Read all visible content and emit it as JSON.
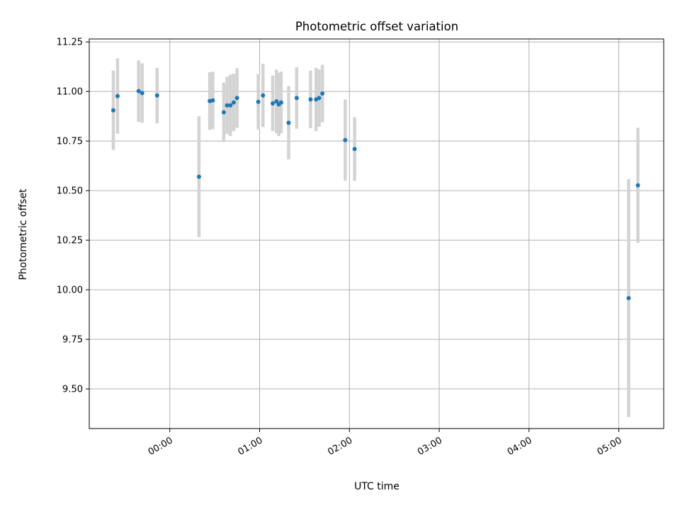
{
  "chart_data": {
    "type": "scatter",
    "title": "Photometric offset variation",
    "xlabel": "UTC time",
    "ylabel": "Photometric offset",
    "x_axis_type": "time",
    "xlim": [
      "-00:53:49",
      "05:30:00"
    ],
    "ylim": [
      9.3,
      11.265
    ],
    "x_ticks": [
      "00:00",
      "01:00",
      "02:00",
      "03:00",
      "04:00",
      "05:00"
    ],
    "y_ticks": [
      "9.50",
      "9.75",
      "10.00",
      "10.25",
      "10.50",
      "10.75",
      "11.00",
      "11.25"
    ],
    "y_tick_values": [
      9.5,
      9.75,
      10.0,
      10.25,
      10.5,
      10.75,
      11.0,
      11.25
    ],
    "grid": true,
    "marker_color": "#1f77b4",
    "errorbar_color": "#d3d3d3",
    "points": [
      {
        "x": "-00:37:45",
        "y": 10.905,
        "err": 0.2
      },
      {
        "x": "-00:34:55",
        "y": 10.977,
        "err": 0.19
      },
      {
        "x": "-00:20:49",
        "y": 11.002,
        "err": 0.155
      },
      {
        "x": "-00:18:28",
        "y": 10.992,
        "err": 0.15
      },
      {
        "x": "-00:08:29",
        "y": 10.98,
        "err": 0.14
      },
      {
        "x": "00:19:30",
        "y": 10.57,
        "err": 0.305
      },
      {
        "x": "00:26:42",
        "y": 10.952,
        "err": 0.145
      },
      {
        "x": "00:28:44",
        "y": 10.955,
        "err": 0.145
      },
      {
        "x": "00:36:03",
        "y": 10.895,
        "err": 0.15
      },
      {
        "x": "00:38:16",
        "y": 10.93,
        "err": 0.145
      },
      {
        "x": "00:40:29",
        "y": 10.93,
        "err": 0.155
      },
      {
        "x": "00:42:42",
        "y": 10.945,
        "err": 0.145
      },
      {
        "x": "00:44:55",
        "y": 10.967,
        "err": 0.15
      },
      {
        "x": "00:59:06",
        "y": 10.948,
        "err": 0.14
      },
      {
        "x": "01:02:15",
        "y": 10.98,
        "err": 0.16
      },
      {
        "x": "01:08:46",
        "y": 10.94,
        "err": 0.14
      },
      {
        "x": "01:11:16",
        "y": 10.95,
        "err": 0.16
      },
      {
        "x": "01:12:50",
        "y": 10.935,
        "err": 0.16
      },
      {
        "x": "01:14:24",
        "y": 10.945,
        "err": 0.155
      },
      {
        "x": "01:19:24",
        "y": 10.842,
        "err": 0.185
      },
      {
        "x": "01:24:47",
        "y": 10.967,
        "err": 0.155
      },
      {
        "x": "01:34:03",
        "y": 10.96,
        "err": 0.145
      },
      {
        "x": "01:37:44",
        "y": 10.96,
        "err": 0.16
      },
      {
        "x": "01:39:46",
        "y": 10.967,
        "err": 0.145
      },
      {
        "x": "01:41:58",
        "y": 10.99,
        "err": 0.145
      },
      {
        "x": "01:57:12",
        "y": 10.755,
        "err": 0.205
      },
      {
        "x": "02:03:29",
        "y": 10.71,
        "err": 0.16
      },
      {
        "x": "05:06:34",
        "y": 9.958,
        "err": 0.6
      },
      {
        "x": "05:12:45",
        "y": 10.527,
        "err": 0.29
      }
    ]
  }
}
